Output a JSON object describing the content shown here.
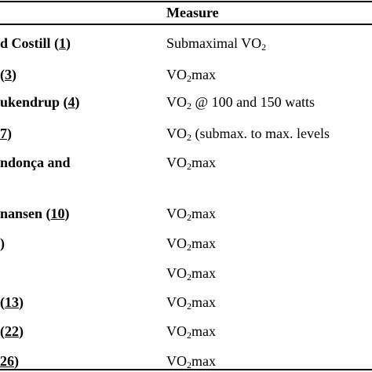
{
  "table": {
    "header": {
      "measure": "Measure"
    },
    "rows": [
      {
        "author": "d Costill (",
        "ref": "1",
        "author_end": ")",
        "measure": {
          "pre": "Submaximal VO",
          "sub": "2"
        }
      },
      {
        "author": "(",
        "ref": "3",
        "author_end": ")",
        "measure": {
          "pre": "VO",
          "sub": "2",
          "post": "max"
        }
      },
      {
        "author": "ukendrup (",
        "ref": "4",
        "author_end": ")",
        "measure": {
          "pre": "VO",
          "sub": "2",
          "post": " @ 100 and 150 watts"
        }
      },
      {
        "ref": "7",
        "author_end": ")",
        "measure": {
          "pre": "VO",
          "sub": "2",
          "post": " (submax. to max. levels"
        }
      },
      {
        "author": "ndonça and",
        "measure": {
          "pre": "VO",
          "sub": "2",
          "post": "max"
        }
      },
      {
        "author": "nansen (",
        "ref": "10",
        "author_end": ")",
        "measure": {
          "pre": "VO",
          "sub": "2",
          "post": "max"
        }
      },
      {
        "author_end": ")",
        "measure": {
          "pre": "VO",
          "sub": "2",
          "post": "max"
        }
      },
      {
        "measure": {
          "pre": "VO",
          "sub": "2",
          "post": "max"
        }
      },
      {
        "author": "(",
        "ref": "13",
        "author_end": ")",
        "measure": {
          "pre": "VO",
          "sub": "2",
          "post": "max"
        }
      },
      {
        "author": "(",
        "ref": "22",
        "author_end": ")",
        "measure": {
          "pre": "VO",
          "sub": "2",
          "post": "max"
        }
      },
      {
        "ref": "26",
        "author_end": ")",
        "measure": {
          "pre": "VO",
          "sub": "2",
          "post": "max"
        }
      }
    ]
  }
}
